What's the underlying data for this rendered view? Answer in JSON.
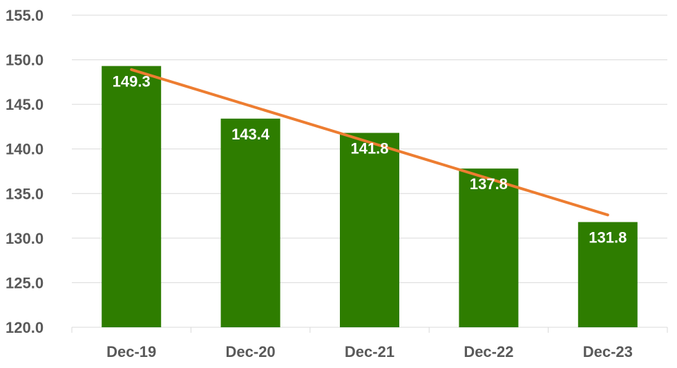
{
  "chart_data": {
    "type": "bar",
    "title": "",
    "xlabel": "",
    "ylabel": "",
    "categories": [
      "Dec-19",
      "Dec-20",
      "Dec-21",
      "Dec-22",
      "Dec-23"
    ],
    "values": [
      149.3,
      143.4,
      141.8,
      137.8,
      131.8
    ],
    "data_labels": [
      "149.3",
      "143.4",
      "141.8",
      "137.8",
      "131.8"
    ],
    "ylim": [
      120,
      155
    ],
    "yticks": [
      120,
      125,
      130,
      135,
      140,
      145,
      150,
      155
    ],
    "ytick_labels": [
      "120.0",
      "125.0",
      "130.0",
      "135.0",
      "140.0",
      "145.0",
      "150.0",
      "155.0"
    ],
    "grid": true,
    "legend": "none",
    "trendline": {
      "type": "linear",
      "start_value": 148.9,
      "end_value": 132.6
    },
    "colors": {
      "bar": "#2e7d00",
      "trendline": "#ed7d31",
      "grid": "#d9d9d9",
      "tick_text": "#595959",
      "label_text": "#ffffff"
    }
  }
}
